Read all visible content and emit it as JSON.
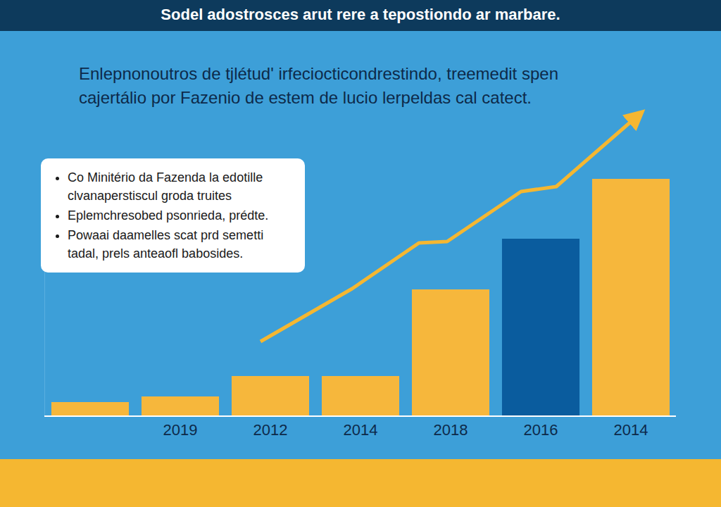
{
  "chart_data": {
    "type": "bar",
    "title": "Sodel adostrosces arut rere a tepostiondo ar marbare.",
    "subtitle": "Enlepnonoutros de tjlétud' irfeciocticondrestindo, treemedit spen cajertálio por Fazenio de estem de lucio lerpeldas cal catect.",
    "annotations": [
      "Co Minitério da Fazenda la edotille clvanaperstiscul groda truites",
      "Eplemchresobed psonrieda, prédte.",
      "Powaai daamelles scat prd semetti tadal, prels anteaofl babosides."
    ],
    "categories": [
      null,
      "2019",
      "2012",
      "2014",
      "2018",
      "2016",
      "2014"
    ],
    "values": [
      19,
      27,
      56,
      56,
      179,
      251,
      336
    ],
    "colors": [
      "#f6b73c",
      "#f6b73c",
      "#f6b73c",
      "#f6b73c",
      "#f6b73c",
      "#0a5c9e",
      "#f6b73c"
    ],
    "ylim": [
      0,
      340
    ],
    "grid": false,
    "tick_labels": "x"
  }
}
